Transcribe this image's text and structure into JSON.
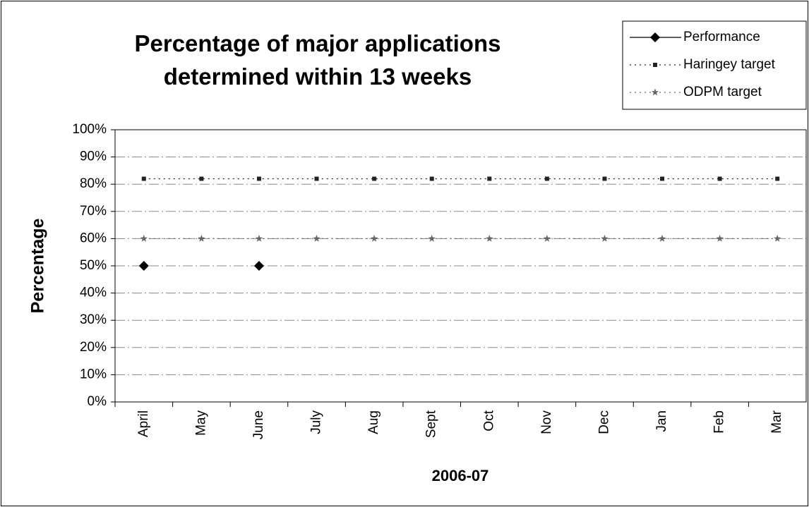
{
  "chart_data": {
    "type": "line",
    "title": "Percentage of major applications determined within 13 weeks",
    "x_label": "2006-07",
    "y_label": "Percentage",
    "categories": [
      "April",
      "May",
      "June",
      "July",
      "Aug",
      "Sept",
      "Oct",
      "Nov",
      "Dec",
      "Jan",
      "Feb",
      "Mar"
    ],
    "series": [
      {
        "name": "Performance",
        "color": "#000000",
        "marker": "diamond",
        "line_style": "solid",
        "values": [
          50,
          null,
          50,
          null,
          null,
          null,
          null,
          null,
          null,
          null,
          null,
          null
        ]
      },
      {
        "name": "Haringey target",
        "color": "#222222",
        "marker": "square",
        "line_style": "dotted",
        "values": [
          82,
          82,
          82,
          82,
          82,
          82,
          82,
          82,
          82,
          82,
          82,
          82
        ]
      },
      {
        "name": "ODPM target",
        "color": "#666666",
        "marker": "star",
        "line_style": "dotted",
        "values": [
          60,
          60,
          60,
          60,
          60,
          60,
          60,
          60,
          60,
          60,
          60,
          60
        ]
      }
    ],
    "ylim": [
      0,
      100
    ],
    "yticks": [
      {
        "value": 0,
        "label": "0%"
      },
      {
        "value": 10,
        "label": "10%"
      },
      {
        "value": 20,
        "label": "20%"
      },
      {
        "value": 30,
        "label": "30%"
      },
      {
        "value": 40,
        "label": "40%"
      },
      {
        "value": 50,
        "label": "50%"
      },
      {
        "value": 60,
        "label": "60%"
      },
      {
        "value": 70,
        "label": "70%"
      },
      {
        "value": 80,
        "label": "80%"
      },
      {
        "value": 90,
        "label": "90%"
      },
      {
        "value": 100,
        "label": "100%"
      }
    ],
    "grid": true,
    "legend": "top-right"
  }
}
